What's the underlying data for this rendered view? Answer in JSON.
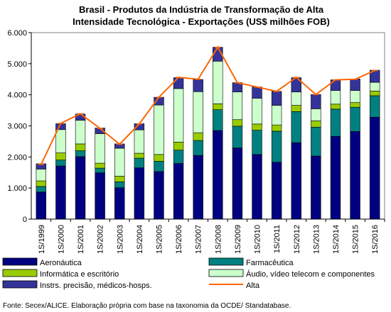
{
  "chart_data": {
    "type": "bar",
    "title_line1": "Brasil - Produtos da Indústria de Transformação de Alta",
    "title_line2": "Intensidade Tecnológica - Exportações (US$ milhões FOB)",
    "categories": [
      "1S/1999",
      "1S/2000",
      "1S/2001",
      "1S/2002",
      "1S/2003",
      "1S/2004",
      "1S/2005",
      "1S/2006",
      "1S/2007",
      "1S/2008",
      "1S/2009",
      "1S/2010",
      "1S/2011",
      "1S/2012",
      "1S/2013",
      "1S/2014",
      "1S/2015",
      "1S/2016"
    ],
    "y_ticks": [
      "0",
      "1.000",
      "2.000",
      "3.000",
      "4.000",
      "5.000",
      "6.000"
    ],
    "ylim": [
      0,
      6000
    ],
    "stacked": true,
    "series": [
      {
        "name": "Aeronáutica",
        "color": "#000080",
        "values": [
          870,
          1710,
          2010,
          1490,
          1010,
          1650,
          1530,
          1790,
          2050,
          2850,
          2290,
          2080,
          1830,
          2460,
          2030,
          2660,
          2820,
          3280
        ]
      },
      {
        "name": "Farmacêutica",
        "color": "#008080",
        "values": [
          180,
          190,
          190,
          150,
          190,
          310,
          330,
          430,
          480,
          670,
          700,
          780,
          1000,
          1000,
          930,
          880,
          780,
          690
        ]
      },
      {
        "name": "Informática e escritório",
        "color": "#99cc00",
        "values": [
          180,
          230,
          220,
          160,
          180,
          160,
          220,
          260,
          250,
          190,
          210,
          200,
          200,
          200,
          200,
          160,
          150,
          150
        ]
      },
      {
        "name": "Áudio, vídeo telecom e componentes",
        "color": "#ccffcc",
        "values": [
          380,
          750,
          760,
          950,
          900,
          750,
          1590,
          1720,
          1320,
          1370,
          890,
          830,
          630,
          430,
          390,
          440,
          390,
          280
        ]
      },
      {
        "name": "Instrs. precisão, médicos-hosps.",
        "color": "#333399",
        "values": [
          170,
          190,
          200,
          180,
          140,
          200,
          250,
          350,
          390,
          450,
          300,
          360,
          450,
          460,
          460,
          340,
          370,
          390
        ]
      }
    ],
    "line_series": {
      "name": "Alta",
      "color": "#ff6600",
      "values": [
        1760,
        3080,
        3390,
        2920,
        2410,
        3060,
        3920,
        4560,
        4500,
        5530,
        4390,
        4250,
        4110,
        4560,
        4010,
        4480,
        4500,
        4780
      ]
    },
    "legend_order": [
      {
        "name": "Aeronáutica",
        "kind": "box",
        "color": "#000080"
      },
      {
        "name": "Farmacêutica",
        "kind": "box",
        "color": "#008080"
      },
      {
        "name": "Informática e escritório",
        "kind": "box",
        "color": "#99cc00"
      },
      {
        "name": "Áudio, vídeo telecom e componentes",
        "kind": "box",
        "color": "#ccffcc"
      },
      {
        "name": "Instrs. precisão, médicos-hosps.",
        "kind": "box",
        "color": "#333399"
      },
      {
        "name": "Alta",
        "kind": "line",
        "color": "#ff6600"
      }
    ],
    "legend_placement": "bottom",
    "grid": false
  },
  "source": "Fonte: Secex/ALICE. Elaboração própria com base na taxonomia da OCDE/ Standatabase."
}
